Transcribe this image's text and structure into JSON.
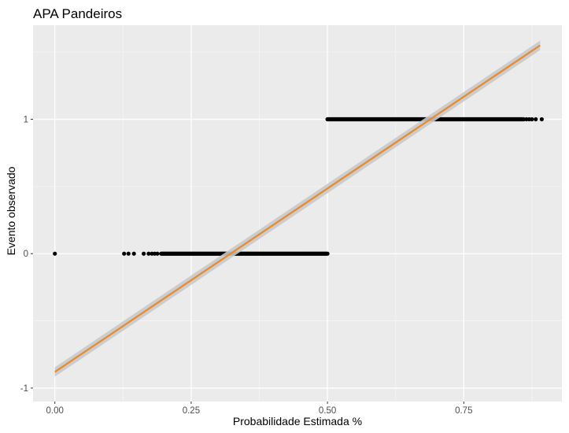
{
  "chart_data": {
    "type": "scatter",
    "title": "APA Pandeiros",
    "xlabel": "Probabilidade Estimada %",
    "ylabel": "Evento observado",
    "xlim": [
      -0.04,
      0.93
    ],
    "ylim": [
      -1.1,
      1.7
    ],
    "x_ticks": [
      0.0,
      0.25,
      0.5,
      0.75
    ],
    "x_tick_labels": [
      "0.00",
      "0.25",
      "0.50",
      "0.75"
    ],
    "y_ticks": [
      -1,
      0,
      1
    ],
    "y_tick_labels": [
      "-1",
      "0",
      "1"
    ],
    "grid": true,
    "legend": "none",
    "series": [
      {
        "role": "observed-events",
        "color": "#000000",
        "segments": [
          {
            "y": 0,
            "x_start": 0.195,
            "x_end": 0.5
          },
          {
            "y": 1,
            "x_start": 0.5,
            "x_end": 0.86
          }
        ],
        "points": [
          {
            "x": 0.0,
            "y": 0
          },
          {
            "x": 0.127,
            "y": 0
          },
          {
            "x": 0.135,
            "y": 0
          },
          {
            "x": 0.145,
            "y": 0
          },
          {
            "x": 0.163,
            "y": 0
          },
          {
            "x": 0.172,
            "y": 0
          },
          {
            "x": 0.178,
            "y": 0
          },
          {
            "x": 0.183,
            "y": 0
          },
          {
            "x": 0.188,
            "y": 0
          },
          {
            "x": 0.865,
            "y": 1
          },
          {
            "x": 0.87,
            "y": 1
          },
          {
            "x": 0.875,
            "y": 1
          },
          {
            "x": 0.882,
            "y": 1
          },
          {
            "x": 0.893,
            "y": 1
          }
        ]
      },
      {
        "role": "linear-fit",
        "color": "#e8892b",
        "band_color": "#c9c9c9",
        "x": [
          0.0,
          0.89
        ],
        "y": [
          -0.88,
          1.55
        ],
        "band_halfwidth": 0.035
      }
    ]
  }
}
